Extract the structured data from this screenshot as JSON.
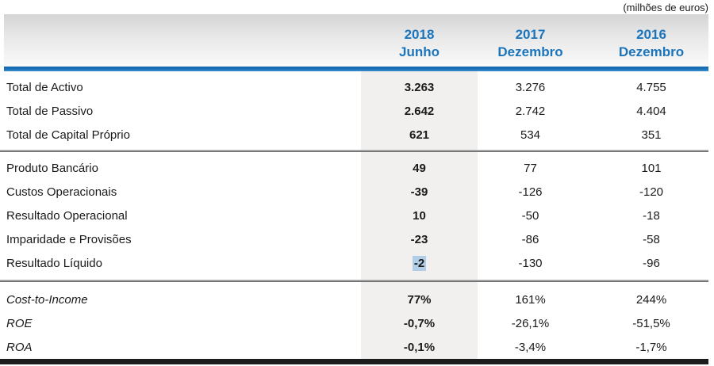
{
  "note": "(milhões de euros)",
  "columns": [
    {
      "year": "2018",
      "period": "Junho"
    },
    {
      "year": "2017",
      "period": "Dezembro"
    },
    {
      "year": "2016",
      "period": "Dezembro"
    }
  ],
  "sections": [
    {
      "rows": [
        {
          "label": "Total de Activo",
          "values": [
            "3.263",
            "3.276",
            "4.755"
          ]
        },
        {
          "label": "Total de Passivo",
          "values": [
            "2.642",
            "2.742",
            "4.404"
          ]
        },
        {
          "label": "Total de Capital Próprio",
          "values": [
            "621",
            "534",
            "351"
          ]
        }
      ]
    },
    {
      "rows": [
        {
          "label": "Produto Bancário",
          "values": [
            "49",
            "77",
            "101"
          ]
        },
        {
          "label": "Custos Operacionais",
          "values": [
            "-39",
            "-126",
            "-120"
          ]
        },
        {
          "label": "Resultado Operacional",
          "values": [
            "10",
            "-50",
            "-18"
          ]
        },
        {
          "label": "Imparidade e Provisões",
          "values": [
            "-23",
            "-86",
            "-58"
          ]
        },
        {
          "label": "Resultado Líquido",
          "values": [
            "-2",
            "-130",
            "-96"
          ]
        }
      ]
    },
    {
      "rows": [
        {
          "label": "Cost-to-Income",
          "values": [
            "77%",
            "161%",
            "244%"
          ]
        },
        {
          "label": "ROE",
          "values": [
            "-0,7%",
            "-26,1%",
            "-51,5%"
          ]
        },
        {
          "label": "ROA",
          "values": [
            "-0,1%",
            "-3,4%",
            "-1,7%"
          ]
        }
      ]
    }
  ],
  "colors": {
    "accent_blue": "#1b75bc",
    "highlight_band_gray": "#f1f0ee",
    "selection_blue": "#b1cee6",
    "bottom_bar_black": "#1c1c1c"
  }
}
